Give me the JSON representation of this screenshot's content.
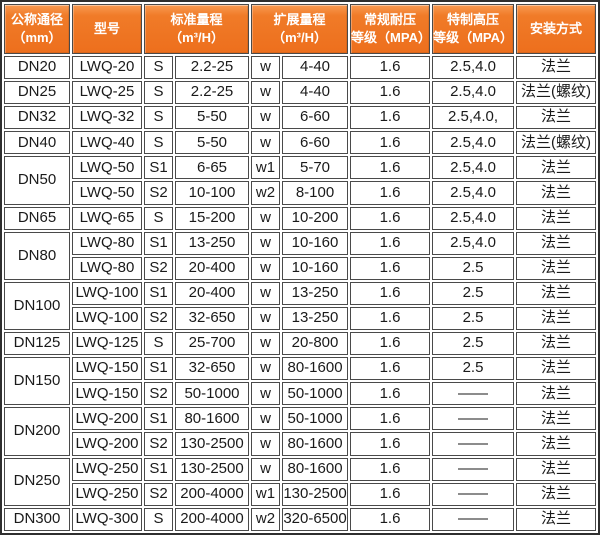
{
  "table": {
    "title_semantic": "LWQ gas turbine flowmeter specification table",
    "headers": [
      {
        "lines": [
          "公称通径",
          "（mm）"
        ]
      },
      {
        "lines": [
          "型号"
        ]
      },
      {
        "lines": [
          "标准量程",
          "（m³/H）"
        ]
      },
      {
        "lines": [
          "扩展量程",
          "（m³/H）"
        ]
      },
      {
        "lines": [
          "常规耐压",
          "等级（MPA）"
        ]
      },
      {
        "lines": [
          "特制高压",
          "等级（MPA）"
        ]
      },
      {
        "lines": [
          "安装方式"
        ]
      }
    ],
    "rows": [
      {
        "dn": "DN20",
        "dn_rowspan": 1,
        "model": "LWQ-20",
        "std_code": "S",
        "std_range": "2.2-25",
        "ext_code": "w",
        "ext_range": "4-40",
        "normal": "1.6",
        "high": "2.5,4.0",
        "install": "法兰"
      },
      {
        "dn": "DN25",
        "dn_rowspan": 1,
        "model": "LWQ-25",
        "std_code": "S",
        "std_range": "2.2-25",
        "ext_code": "w",
        "ext_range": "4-40",
        "normal": "1.6",
        "high": "2.5,4.0",
        "install": "法兰(螺纹)"
      },
      {
        "dn": "DN32",
        "dn_rowspan": 1,
        "model": "LWQ-32",
        "std_code": "S",
        "std_range": "5-50",
        "ext_code": "w",
        "ext_range": "6-60",
        "normal": "1.6",
        "high": "2.5,4.0,",
        "install": "法兰"
      },
      {
        "dn": "DN40",
        "dn_rowspan": 1,
        "model": "LWQ-40",
        "std_code": "S",
        "std_range": "5-50",
        "ext_code": "w",
        "ext_range": "6-60",
        "normal": "1.6",
        "high": "2.5,4.0",
        "install": "法兰(螺纹)"
      },
      {
        "dn": "DN50",
        "dn_rowspan": 2,
        "model": "LWQ-50",
        "std_code": "S1",
        "std_range": "6-65",
        "ext_code": "w1",
        "ext_range": "5-70",
        "normal": "1.6",
        "high": "2.5,4.0",
        "install": "法兰"
      },
      {
        "model": "LWQ-50",
        "std_code": "S2",
        "std_range": "10-100",
        "ext_code": "w2",
        "ext_range": "8-100",
        "normal": "1.6",
        "high": "2.5,4.0",
        "install": "法兰"
      },
      {
        "dn": "DN65",
        "dn_rowspan": 1,
        "model": "LWQ-65",
        "std_code": "S",
        "std_range": "15-200",
        "ext_code": "w",
        "ext_range": "10-200",
        "normal": "1.6",
        "high": "2.5,4.0",
        "install": "法兰"
      },
      {
        "dn": "DN80",
        "dn_rowspan": 2,
        "model": "LWQ-80",
        "std_code": "S1",
        "std_range": "13-250",
        "ext_code": "w",
        "ext_range": "10-160",
        "normal": "1.6",
        "high": "2.5,4.0",
        "install": "法兰"
      },
      {
        "model": "LWQ-80",
        "std_code": "S2",
        "std_range": "20-400",
        "ext_code": "w",
        "ext_range": "10-160",
        "normal": "1.6",
        "high": "2.5",
        "install": "法兰"
      },
      {
        "dn": "DN100",
        "dn_rowspan": 2,
        "model": "LWQ-100",
        "std_code": "S1",
        "std_range": "20-400",
        "ext_code": "w",
        "ext_range": "13-250",
        "normal": "1.6",
        "high": "2.5",
        "install": "法兰"
      },
      {
        "model": "LWQ-100",
        "std_code": "S2",
        "std_range": "32-650",
        "ext_code": "w",
        "ext_range": "13-250",
        "normal": "1.6",
        "high": "2.5",
        "install": "法兰"
      },
      {
        "dn": "DN125",
        "dn_rowspan": 1,
        "model": "LWQ-125",
        "std_code": "S",
        "std_range": "25-700",
        "ext_code": "w",
        "ext_range": "20-800",
        "normal": "1.6",
        "high": "2.5",
        "install": "法兰"
      },
      {
        "dn": "DN150",
        "dn_rowspan": 2,
        "model": "LWQ-150",
        "std_code": "S1",
        "std_range": "32-650",
        "ext_code": "w",
        "ext_range": "80-1600",
        "normal": "1.6",
        "high": "2.5",
        "install": "法兰"
      },
      {
        "model": "LWQ-150",
        "std_code": "S2",
        "std_range": "50-1000",
        "ext_code": "w",
        "ext_range": "50-1000",
        "normal": "1.6",
        "high": "——",
        "install": "法兰"
      },
      {
        "dn": "DN200",
        "dn_rowspan": 2,
        "model": "LWQ-200",
        "std_code": "S1",
        "std_range": "80-1600",
        "ext_code": "w",
        "ext_range": "50-1000",
        "normal": "1.6",
        "high": "——",
        "install": "法兰"
      },
      {
        "model": "LWQ-200",
        "std_code": "S2",
        "std_range": "130-2500",
        "ext_code": "w",
        "ext_range": "80-1600",
        "normal": "1.6",
        "high": "——",
        "install": "法兰"
      },
      {
        "dn": "DN250",
        "dn_rowspan": 2,
        "model": "LWQ-250",
        "std_code": "S1",
        "std_range": "130-2500",
        "ext_code": "w",
        "ext_range": "80-1600",
        "normal": "1.6",
        "high": "——",
        "install": "法兰"
      },
      {
        "model": "LWQ-250",
        "std_code": "S2",
        "std_range": "200-4000",
        "ext_code": "w1",
        "ext_range": "130-2500",
        "normal": "1.6",
        "high": "——",
        "install": "法兰"
      },
      {
        "dn": "DN300",
        "dn_rowspan": 1,
        "model": "LWQ-300",
        "std_code": "S",
        "std_range": "200-4000",
        "ext_code": "w2",
        "ext_range": "320-6500",
        "normal": "1.6",
        "high": "——",
        "install": "法兰"
      }
    ]
  },
  "colors": {
    "header_background": "#ee7120",
    "header_background_highlight": "#f99a52",
    "header_text": "#ffffff",
    "cell_background": "#ffffff",
    "cell_text": "#1a1a1a",
    "border": "#4a4a4a"
  }
}
